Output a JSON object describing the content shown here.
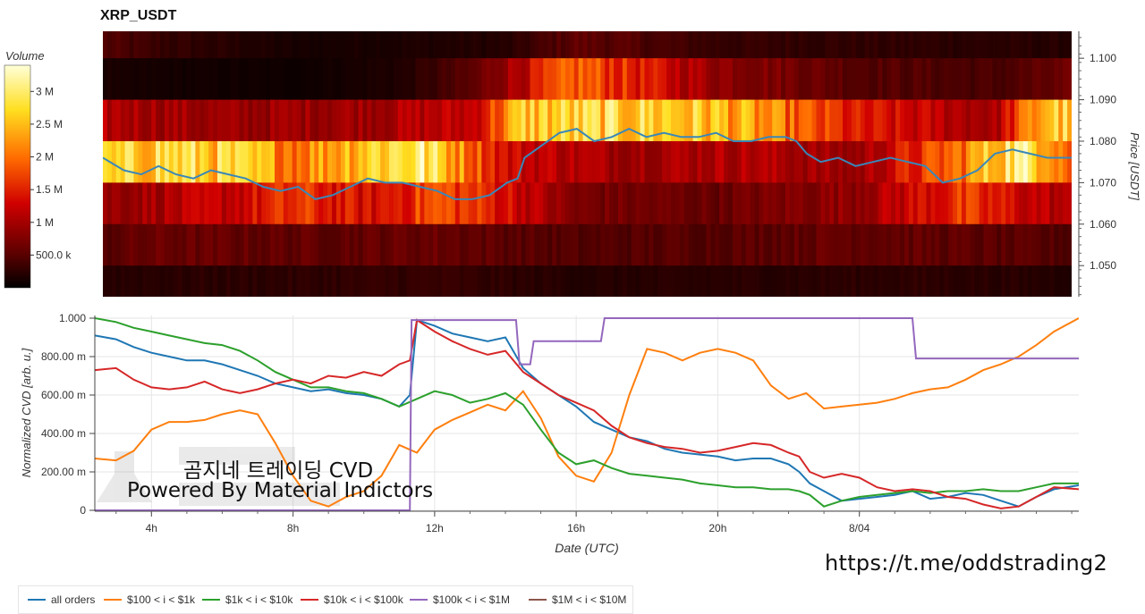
{
  "title": "XRP_USDT",
  "colorbar": {
    "title": "Volume",
    "ticks": [
      {
        "value": 3000000,
        "label": "3 M"
      },
      {
        "value": 2500000,
        "label": "2.5 M"
      },
      {
        "value": 2000000,
        "label": "2 M"
      },
      {
        "value": 1500000,
        "label": "1.5 M"
      },
      {
        "value": 1000000,
        "label": "1 M"
      },
      {
        "value": 500000,
        "label": "500.0 k"
      }
    ],
    "range": [
      0,
      3400000
    ],
    "palette": "hot"
  },
  "watermark": {
    "line1": "곰지네 트레이딩 CVD",
    "line2": "Powered By Material Indictors"
  },
  "url": "https://t.me/oddstrading2",
  "chart_data": [
    {
      "type": "heatmap",
      "title": "XRP_USDT",
      "ylabel": "Price [USDT]",
      "ylim": [
        1.0425,
        1.1065
      ],
      "x_range_hours": [
        2.4,
        30.2
      ],
      "yticks": [
        {
          "value": 1.05,
          "label": "1.050"
        },
        {
          "value": 1.06,
          "label": "1.060"
        },
        {
          "value": 1.07,
          "label": "1.070"
        },
        {
          "value": 1.08,
          "label": "1.080"
        },
        {
          "value": 1.09,
          "label": "1.090"
        },
        {
          "value": 1.1,
          "label": "1.100"
        }
      ],
      "price_bands": [
        1.105,
        1.095,
        1.085,
        1.075,
        1.065,
        1.055,
        1.045
      ],
      "band_profiles": [
        [
          [
            2.4,
            0.45
          ],
          [
            4.0,
            0.3
          ],
          [
            8.0,
            0.12
          ],
          [
            14.0,
            0.2
          ],
          [
            16.0,
            0.55
          ],
          [
            20.0,
            0.3
          ],
          [
            26.0,
            0.25
          ],
          [
            30.2,
            0.2
          ]
        ],
        [
          [
            2.4,
            0.15
          ],
          [
            3.0,
            0.12
          ],
          [
            8.0,
            0.08
          ],
          [
            11.0,
            0.18
          ],
          [
            13.0,
            0.5
          ],
          [
            16.0,
            1.9
          ],
          [
            20.0,
            0.9
          ],
          [
            24.0,
            0.5
          ],
          [
            28.0,
            0.4
          ],
          [
            30.2,
            0.6
          ]
        ],
        [
          [
            2.4,
            1.1
          ],
          [
            6.0,
            0.9
          ],
          [
            10.0,
            1.0
          ],
          [
            13.0,
            1.2
          ],
          [
            14.5,
            2.6
          ],
          [
            18.0,
            2.7
          ],
          [
            20.0,
            2.5
          ],
          [
            24.0,
            1.4
          ],
          [
            28.0,
            1.0
          ],
          [
            29.5,
            2.6
          ],
          [
            30.2,
            2.6
          ]
        ],
        [
          [
            2.4,
            2.4
          ],
          [
            4.0,
            2.8
          ],
          [
            6.0,
            2.6
          ],
          [
            8.0,
            2.1
          ],
          [
            10.0,
            2.7
          ],
          [
            11.5,
            3.0
          ],
          [
            13.0,
            2.0
          ],
          [
            14.0,
            1.3
          ],
          [
            17.0,
            1.0
          ],
          [
            21.0,
            1.1
          ],
          [
            24.0,
            0.9
          ],
          [
            27.0,
            2.0
          ],
          [
            28.5,
            3.0
          ],
          [
            29.5,
            2.7
          ],
          [
            30.2,
            1.8
          ]
        ],
        [
          [
            2.4,
            0.9
          ],
          [
            6.0,
            1.2
          ],
          [
            8.0,
            1.6
          ],
          [
            10.0,
            1.3
          ],
          [
            12.0,
            1.8
          ],
          [
            14.0,
            1.4
          ],
          [
            16.0,
            0.7
          ],
          [
            20.0,
            0.6
          ],
          [
            24.0,
            0.9
          ],
          [
            27.0,
            1.6
          ],
          [
            30.2,
            1.0
          ]
        ],
        [
          [
            2.4,
            0.5
          ],
          [
            4.0,
            0.6
          ],
          [
            8.0,
            0.55
          ],
          [
            12.0,
            0.6
          ],
          [
            16.0,
            0.45
          ],
          [
            20.0,
            0.5
          ],
          [
            24.0,
            0.6
          ],
          [
            28.0,
            0.5
          ],
          [
            30.2,
            0.45
          ]
        ],
        [
          [
            2.4,
            0.22
          ],
          [
            8.0,
            0.25
          ],
          [
            12.0,
            0.3
          ],
          [
            16.0,
            0.2
          ],
          [
            20.0,
            0.22
          ],
          [
            26.0,
            0.25
          ],
          [
            30.2,
            0.2
          ]
        ]
      ],
      "series": [
        {
          "name": "Price",
          "color": "#3a87b8",
          "x": [
            2.4,
            3.0,
            3.5,
            4.0,
            4.5,
            5.0,
            5.5,
            6.0,
            6.5,
            7.0,
            7.5,
            8.0,
            8.5,
            9.0,
            9.5,
            10.0,
            10.5,
            11.0,
            11.5,
            12.0,
            12.5,
            13.0,
            13.5,
            14.0,
            14.3,
            14.5,
            15.0,
            15.5,
            16.0,
            16.5,
            17.0,
            17.5,
            18.0,
            18.5,
            19.0,
            19.5,
            20.0,
            20.5,
            21.0,
            21.5,
            22.0,
            22.3,
            22.6,
            23.0,
            23.5,
            24.0,
            24.5,
            25.0,
            25.5,
            26.0,
            26.5,
            27.0,
            27.5,
            28.0,
            28.5,
            29.0,
            29.5,
            30.2
          ],
          "y": [
            1.076,
            1.073,
            1.072,
            1.074,
            1.072,
            1.071,
            1.073,
            1.072,
            1.071,
            1.069,
            1.068,
            1.069,
            1.066,
            1.067,
            1.069,
            1.071,
            1.07,
            1.07,
            1.069,
            1.068,
            1.066,
            1.066,
            1.067,
            1.07,
            1.071,
            1.076,
            1.079,
            1.082,
            1.083,
            1.08,
            1.081,
            1.083,
            1.081,
            1.082,
            1.081,
            1.081,
            1.082,
            1.08,
            1.08,
            1.081,
            1.081,
            1.08,
            1.077,
            1.075,
            1.076,
            1.074,
            1.075,
            1.076,
            1.075,
            1.074,
            1.07,
            1.071,
            1.073,
            1.077,
            1.078,
            1.077,
            1.076,
            1.076
          ]
        }
      ]
    },
    {
      "type": "line",
      "xlabel": "Date (UTC)",
      "ylabel": "Normalized CVD [arb. u.]",
      "xlim": [
        2.4,
        30.2
      ],
      "ylim": [
        0,
        1
      ],
      "xticks": [
        {
          "value": 4,
          "label": "4h"
        },
        {
          "value": 8,
          "label": "8h"
        },
        {
          "value": 12,
          "label": "12h"
        },
        {
          "value": 16,
          "label": "16h"
        },
        {
          "value": 20,
          "label": "20h"
        },
        {
          "value": 24,
          "label": "8/04"
        }
      ],
      "yticks": [
        {
          "value": 0,
          "label": "0"
        },
        {
          "value": 0.2,
          "label": "200.00 m"
        },
        {
          "value": 0.4,
          "label": "400.00 m"
        },
        {
          "value": 0.6,
          "label": "600.00 m"
        },
        {
          "value": 0.8,
          "label": "800.00 m"
        },
        {
          "value": 1.0,
          "label": "1.000"
        }
      ],
      "grid": true,
      "legend_position": "bottom",
      "series": [
        {
          "name": "all orders",
          "color": "#1f77b4",
          "x": [
            2.4,
            3,
            3.5,
            4,
            4.5,
            5,
            5.5,
            6,
            6.5,
            7,
            7.5,
            8,
            8.5,
            9,
            9.5,
            10,
            10.5,
            11,
            11.3,
            11.5,
            12,
            12.5,
            13,
            13.5,
            14,
            14.5,
            15,
            15.5,
            16,
            16.5,
            17,
            17.5,
            18,
            18.5,
            19,
            19.5,
            20,
            20.5,
            21,
            21.5,
            22,
            22.3,
            22.6,
            23,
            23.5,
            24,
            24.5,
            25,
            25.5,
            26,
            26.5,
            27,
            27.5,
            28,
            28.5,
            29,
            29.5,
            30.2
          ],
          "y": [
            0.91,
            0.89,
            0.85,
            0.82,
            0.8,
            0.78,
            0.78,
            0.76,
            0.73,
            0.7,
            0.66,
            0.64,
            0.62,
            0.63,
            0.61,
            0.6,
            0.58,
            0.54,
            0.6,
            0.99,
            0.96,
            0.92,
            0.9,
            0.88,
            0.9,
            0.74,
            0.66,
            0.6,
            0.54,
            0.46,
            0.42,
            0.38,
            0.36,
            0.32,
            0.3,
            0.29,
            0.28,
            0.26,
            0.27,
            0.27,
            0.24,
            0.2,
            0.14,
            0.1,
            0.05,
            0.06,
            0.07,
            0.08,
            0.1,
            0.06,
            0.07,
            0.09,
            0.08,
            0.05,
            0.02,
            0.07,
            0.11,
            0.13
          ]
        },
        {
          "name": "$100 < i < $1k",
          "color": "#ff7f0e",
          "x": [
            2.4,
            3,
            3.5,
            4,
            4.5,
            5,
            5.5,
            6,
            6.5,
            7,
            7.5,
            8,
            8.5,
            9,
            9.5,
            10,
            10.5,
            11,
            11.5,
            12,
            12.5,
            13,
            13.5,
            14,
            14.5,
            15,
            15.5,
            16,
            16.5,
            17,
            17.5,
            18,
            18.5,
            19,
            19.5,
            20,
            20.5,
            21,
            21.5,
            22,
            22.5,
            23,
            23.5,
            24,
            24.5,
            25,
            25.5,
            26,
            26.5,
            27,
            27.5,
            28,
            28.5,
            29,
            29.5,
            30.2
          ],
          "y": [
            0.27,
            0.26,
            0.31,
            0.42,
            0.46,
            0.46,
            0.47,
            0.5,
            0.52,
            0.5,
            0.35,
            0.18,
            0.05,
            0.02,
            0.07,
            0.1,
            0.18,
            0.34,
            0.3,
            0.42,
            0.47,
            0.51,
            0.55,
            0.52,
            0.62,
            0.48,
            0.28,
            0.18,
            0.15,
            0.3,
            0.6,
            0.84,
            0.82,
            0.78,
            0.82,
            0.84,
            0.82,
            0.78,
            0.65,
            0.58,
            0.61,
            0.53,
            0.54,
            0.55,
            0.56,
            0.58,
            0.61,
            0.63,
            0.64,
            0.68,
            0.73,
            0.76,
            0.8,
            0.86,
            0.93,
            1.0
          ]
        },
        {
          "name": "$1k < i < $10k",
          "color": "#2ca02c",
          "x": [
            2.4,
            3,
            3.5,
            4,
            4.5,
            5,
            5.5,
            6,
            6.5,
            7,
            7.5,
            8,
            8.5,
            9,
            9.5,
            10,
            10.5,
            11,
            11.5,
            12,
            12.5,
            13,
            13.5,
            14,
            14.5,
            15,
            15.5,
            16,
            16.5,
            17,
            17.5,
            18,
            18.5,
            19,
            19.5,
            20,
            20.5,
            21,
            21.5,
            22,
            22.3,
            22.6,
            23,
            23.5,
            24,
            24.5,
            25,
            25.5,
            26,
            26.5,
            27,
            27.5,
            28,
            28.5,
            29,
            29.5,
            30.2
          ],
          "y": [
            1.0,
            0.98,
            0.95,
            0.93,
            0.91,
            0.89,
            0.87,
            0.86,
            0.83,
            0.78,
            0.72,
            0.68,
            0.64,
            0.64,
            0.62,
            0.61,
            0.58,
            0.54,
            0.58,
            0.62,
            0.6,
            0.56,
            0.58,
            0.61,
            0.55,
            0.42,
            0.3,
            0.24,
            0.26,
            0.22,
            0.19,
            0.18,
            0.17,
            0.16,
            0.14,
            0.13,
            0.12,
            0.12,
            0.11,
            0.11,
            0.1,
            0.08,
            0.02,
            0.05,
            0.07,
            0.08,
            0.09,
            0.1,
            0.09,
            0.1,
            0.1,
            0.11,
            0.1,
            0.1,
            0.12,
            0.14,
            0.14
          ]
        },
        {
          "name": "$10k < i < $100k",
          "color": "#d62728",
          "x": [
            2.4,
            3,
            3.5,
            4,
            4.5,
            5,
            5.5,
            6,
            6.5,
            7,
            7.5,
            8,
            8.5,
            9,
            9.5,
            10,
            10.5,
            11,
            11.3,
            11.5,
            12,
            12.5,
            13,
            13.5,
            14,
            14.5,
            15,
            15.5,
            16,
            16.5,
            17,
            17.5,
            18,
            18.5,
            19,
            19.5,
            20,
            20.5,
            21,
            21.5,
            22,
            22.3,
            22.6,
            23,
            23.5,
            24,
            24.5,
            25,
            25.5,
            26,
            26.5,
            27,
            27.5,
            28,
            28.5,
            29,
            29.5,
            30.2
          ],
          "y": [
            0.73,
            0.74,
            0.68,
            0.64,
            0.63,
            0.64,
            0.67,
            0.63,
            0.61,
            0.63,
            0.66,
            0.68,
            0.66,
            0.7,
            0.69,
            0.72,
            0.7,
            0.76,
            0.78,
            0.99,
            0.93,
            0.88,
            0.84,
            0.81,
            0.83,
            0.72,
            0.66,
            0.6,
            0.56,
            0.52,
            0.44,
            0.38,
            0.35,
            0.33,
            0.32,
            0.3,
            0.31,
            0.33,
            0.35,
            0.34,
            0.3,
            0.28,
            0.2,
            0.17,
            0.19,
            0.17,
            0.12,
            0.1,
            0.11,
            0.1,
            0.07,
            0.06,
            0.03,
            0.01,
            0.02,
            0.07,
            0.12,
            0.11
          ]
        },
        {
          "name": "$100k < i < $1M",
          "color": "#9467bd",
          "x": [
            2.4,
            11.3,
            11.35,
            11.6,
            14.3,
            14.4,
            14.7,
            14.8,
            16.7,
            16.8,
            22.0,
            22.1,
            25.5,
            25.6,
            30.2
          ],
          "y": [
            0,
            0,
            0.99,
            0.99,
            0.99,
            0.76,
            0.76,
            0.88,
            0.88,
            1.0,
            1.0,
            1.0,
            1.0,
            0.79,
            0.79
          ]
        },
        {
          "name": "$1M < i < $10M",
          "color": "#8c564b",
          "x": [],
          "y": []
        }
      ]
    }
  ]
}
